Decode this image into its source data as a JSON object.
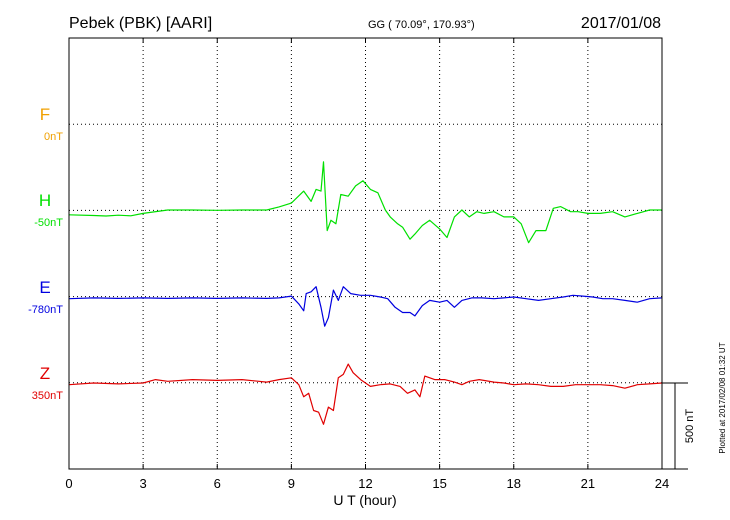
{
  "header": {
    "station": "Pebek (PBK)  [AARI]",
    "coords": "GG ( 70.09°, 170.93°)",
    "date": "2017/01/08"
  },
  "plotted_note": "Plotted at 2017/02/08 01:32 UT",
  "chart_data": {
    "type": "line",
    "title": "Pebek (PBK)  [AARI]",
    "xlabel": "U T (hour)",
    "ylabel": "",
    "xlim": [
      0,
      24
    ],
    "x_ticks": [
      "0",
      "3",
      "6",
      "9",
      "12",
      "15",
      "18",
      "21",
      "24"
    ],
    "grid": true,
    "scale_bar": {
      "label": "500 nT",
      "value": 500
    },
    "nT_per_division": 250,
    "series": [
      {
        "name": "F",
        "baseline_label": "0nT",
        "color": "#f0a000",
        "points": []
      },
      {
        "name": "H",
        "baseline_label": "-50nT",
        "color": "#00e000",
        "points": [
          [
            0,
            -28
          ],
          [
            1,
            -32
          ],
          [
            1.5,
            -35
          ],
          [
            2,
            -30
          ],
          [
            2.5,
            -34
          ],
          [
            3,
            -20
          ],
          [
            4,
            0
          ],
          [
            5,
            0
          ],
          [
            6,
            -2
          ],
          [
            7,
            0
          ],
          [
            8,
            0
          ],
          [
            8.5,
            18
          ],
          [
            9,
            40
          ],
          [
            9.5,
            110
          ],
          [
            9.8,
            50
          ],
          [
            10,
            120
          ],
          [
            10.2,
            110
          ],
          [
            10.3,
            280
          ],
          [
            10.45,
            -120
          ],
          [
            10.6,
            -60
          ],
          [
            10.8,
            -80
          ],
          [
            11,
            90
          ],
          [
            11.3,
            80
          ],
          [
            11.6,
            140
          ],
          [
            11.9,
            170
          ],
          [
            12.2,
            120
          ],
          [
            12.5,
            100
          ],
          [
            12.8,
            0
          ],
          [
            13,
            -40
          ],
          [
            13.3,
            -80
          ],
          [
            13.5,
            -100
          ],
          [
            13.8,
            -170
          ],
          [
            14,
            -140
          ],
          [
            14.3,
            -90
          ],
          [
            14.6,
            -60
          ],
          [
            15,
            -110
          ],
          [
            15.3,
            -160
          ],
          [
            15.6,
            -40
          ],
          [
            15.9,
            0
          ],
          [
            16.2,
            -40
          ],
          [
            16.5,
            -10
          ],
          [
            16.8,
            -20
          ],
          [
            17.2,
            -10
          ],
          [
            17.6,
            -40
          ],
          [
            18,
            -40
          ],
          [
            18.3,
            -80
          ],
          [
            18.6,
            -190
          ],
          [
            18.9,
            -120
          ],
          [
            19.3,
            -120
          ],
          [
            19.6,
            10
          ],
          [
            19.9,
            20
          ],
          [
            20.3,
            -10
          ],
          [
            20.6,
            -10
          ],
          [
            21,
            -20
          ],
          [
            21.5,
            -20
          ],
          [
            22,
            -10
          ],
          [
            22.5,
            -40
          ],
          [
            23,
            -20
          ],
          [
            23.5,
            0
          ],
          [
            24,
            0
          ]
        ]
      },
      {
        "name": "E",
        "baseline_label": "-780nT",
        "color": "#0000e0",
        "points": [
          [
            0,
            -10
          ],
          [
            1,
            -5
          ],
          [
            2,
            -8
          ],
          [
            3,
            -5
          ],
          [
            4,
            -8
          ],
          [
            5,
            -5
          ],
          [
            6,
            -8
          ],
          [
            7,
            -5
          ],
          [
            8,
            -8
          ],
          [
            8.5,
            -5
          ],
          [
            9,
            5
          ],
          [
            9.3,
            -40
          ],
          [
            9.5,
            -80
          ],
          [
            9.6,
            20
          ],
          [
            9.8,
            30
          ],
          [
            10,
            60
          ],
          [
            10.2,
            -60
          ],
          [
            10.35,
            -170
          ],
          [
            10.5,
            -120
          ],
          [
            10.7,
            40
          ],
          [
            10.9,
            -20
          ],
          [
            11.1,
            60
          ],
          [
            11.4,
            20
          ],
          [
            11.8,
            10
          ],
          [
            12.2,
            10
          ],
          [
            12.6,
            0
          ],
          [
            12.9,
            -10
          ],
          [
            13.2,
            -60
          ],
          [
            13.5,
            -90
          ],
          [
            13.8,
            -90
          ],
          [
            14,
            -110
          ],
          [
            14.3,
            -50
          ],
          [
            14.6,
            -20
          ],
          [
            15,
            -30
          ],
          [
            15.3,
            -20
          ],
          [
            15.6,
            -60
          ],
          [
            15.9,
            -20
          ],
          [
            16.3,
            -5
          ],
          [
            16.7,
            -5
          ],
          [
            17.2,
            -10
          ],
          [
            17.6,
            -5
          ],
          [
            18,
            0
          ],
          [
            18.5,
            -10
          ],
          [
            19,
            -20
          ],
          [
            19.5,
            -10
          ],
          [
            20,
            0
          ],
          [
            20.4,
            10
          ],
          [
            20.8,
            5
          ],
          [
            21.2,
            0
          ],
          [
            21.6,
            -10
          ],
          [
            22,
            -10
          ],
          [
            22.5,
            -20
          ],
          [
            23,
            -30
          ],
          [
            23.5,
            -10
          ],
          [
            24,
            -5
          ]
        ]
      },
      {
        "name": "Z",
        "baseline_label": "350nT",
        "color": "#e00000",
        "points": [
          [
            0,
            -10
          ],
          [
            1,
            0
          ],
          [
            2,
            -5
          ],
          [
            3,
            0
          ],
          [
            3.5,
            20
          ],
          [
            4,
            10
          ],
          [
            5,
            20
          ],
          [
            6,
            15
          ],
          [
            7,
            20
          ],
          [
            8,
            5
          ],
          [
            8.5,
            20
          ],
          [
            9,
            30
          ],
          [
            9.3,
            -10
          ],
          [
            9.5,
            -80
          ],
          [
            9.7,
            -60
          ],
          [
            9.9,
            -160
          ],
          [
            10.1,
            -170
          ],
          [
            10.3,
            -240
          ],
          [
            10.5,
            -140
          ],
          [
            10.7,
            -160
          ],
          [
            10.9,
            30
          ],
          [
            11.1,
            50
          ],
          [
            11.3,
            110
          ],
          [
            11.5,
            60
          ],
          [
            11.8,
            20
          ],
          [
            12.2,
            -20
          ],
          [
            12.6,
            -10
          ],
          [
            13,
            -5
          ],
          [
            13.4,
            -20
          ],
          [
            13.7,
            -60
          ],
          [
            14,
            -40
          ],
          [
            14.2,
            -80
          ],
          [
            14.4,
            40
          ],
          [
            14.8,
            20
          ],
          [
            15.2,
            20
          ],
          [
            15.6,
            5
          ],
          [
            15.9,
            -10
          ],
          [
            16.2,
            10
          ],
          [
            16.6,
            20
          ],
          [
            17.2,
            5
          ],
          [
            17.6,
            0
          ],
          [
            18,
            -10
          ],
          [
            18.5,
            -5
          ],
          [
            19,
            -10
          ],
          [
            19.5,
            -20
          ],
          [
            20,
            -20
          ],
          [
            20.5,
            -10
          ],
          [
            21,
            -10
          ],
          [
            21.5,
            -10
          ],
          [
            22,
            -15
          ],
          [
            22.5,
            -30
          ],
          [
            23,
            -10
          ],
          [
            23.5,
            -5
          ],
          [
            24,
            0
          ]
        ]
      }
    ]
  }
}
